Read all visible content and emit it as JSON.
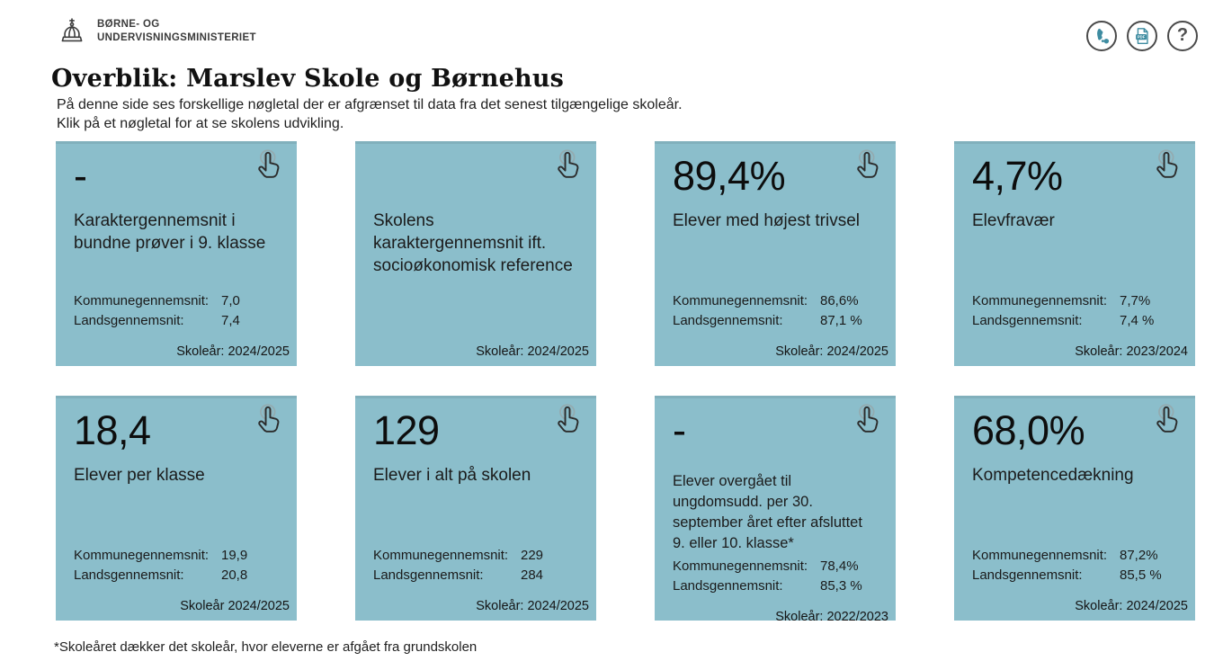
{
  "header": {
    "logo_line1": "BØRNE- OG",
    "logo_line2": "UNDERVISNINGSMINISTERIET",
    "pdf_label": "PDF",
    "help_glyph": "?"
  },
  "page": {
    "title": "Overblik: Marslev Skole og Børnehus",
    "intro_line1": "På denne side ses forskellige nøgletal der er afgrænset til data fra det senest tilgængelige skoleår.",
    "intro_line2": "Klik på et nøgletal for at se skolens udvikling.",
    "footnote": "*Skoleåret dækker det skoleår, hvor eleverne er afgået fra grundskolen"
  },
  "colors": {
    "tile_bg": "#8BBECB",
    "icon_teal": "#3E8CA1",
    "circle_border": "#4A4A4A",
    "text": "#1A1A1A"
  },
  "tiles": [
    {
      "value": "-",
      "title": "Karaktergennemsnit i bundne prøver i 9. klasse",
      "stats": [
        {
          "label": "Kommunegennemsnit:",
          "value": "7,0"
        },
        {
          "label": "Landsgennemsnit:",
          "value": "7,4"
        }
      ],
      "year": "Skoleår: 2024/2025"
    },
    {
      "value": "",
      "title": "Skolens karaktergennemsnit ift. socioøkonomisk reference",
      "stats": [],
      "year": "Skoleår: 2024/2025"
    },
    {
      "value": "89,4%",
      "title": "Elever med højest trivsel",
      "stats": [
        {
          "label": "Kommunegennemsnit:",
          "value": "86,6%"
        },
        {
          "label": "Landsgennemsnit:",
          "value": "87,1 %"
        }
      ],
      "year": "Skoleår: 2024/2025"
    },
    {
      "value": "4,7%",
      "title": "Elevfravær",
      "stats": [
        {
          "label": "Kommunegennemsnit:",
          "value": "7,7%"
        },
        {
          "label": "Landsgennemsnit:",
          "value": "7,4 %"
        }
      ],
      "year": "Skoleår: 2023/2024"
    },
    {
      "value": "18,4",
      "title": "Elever per klasse",
      "stats": [
        {
          "label": "Kommunegennemsnit:",
          "value": "19,9"
        },
        {
          "label": "Landsgennemsnit:",
          "value": "20,8"
        }
      ],
      "year": "Skoleår 2024/2025"
    },
    {
      "value": "129",
      "title": "Elever i alt på skolen",
      "stats": [
        {
          "label": "Kommunegennemsnit:",
          "value": "229"
        },
        {
          "label": "Landsgennemsnit:",
          "value": "284"
        }
      ],
      "year": "Skoleår: 2024/2025"
    },
    {
      "value": "-",
      "title": "Elever overgået til ungdomsudd. per 30. september året efter afsluttet 9. eller 10. klasse*",
      "stats": [
        {
          "label": "Kommunegennemsnit:",
          "value": "78,4%"
        },
        {
          "label": "Landsgennemsnit:",
          "value": "85,3 %"
        }
      ],
      "year": "Skoleår: 2022/2023"
    },
    {
      "value": "68,0%",
      "title": "Kompetencedækning",
      "stats": [
        {
          "label": "Kommunegennemsnit:",
          "value": "87,2%"
        },
        {
          "label": "Landsgennemsnit:",
          "value": "85,5 %"
        }
      ],
      "year": "Skoleår: 2024/2025"
    }
  ]
}
